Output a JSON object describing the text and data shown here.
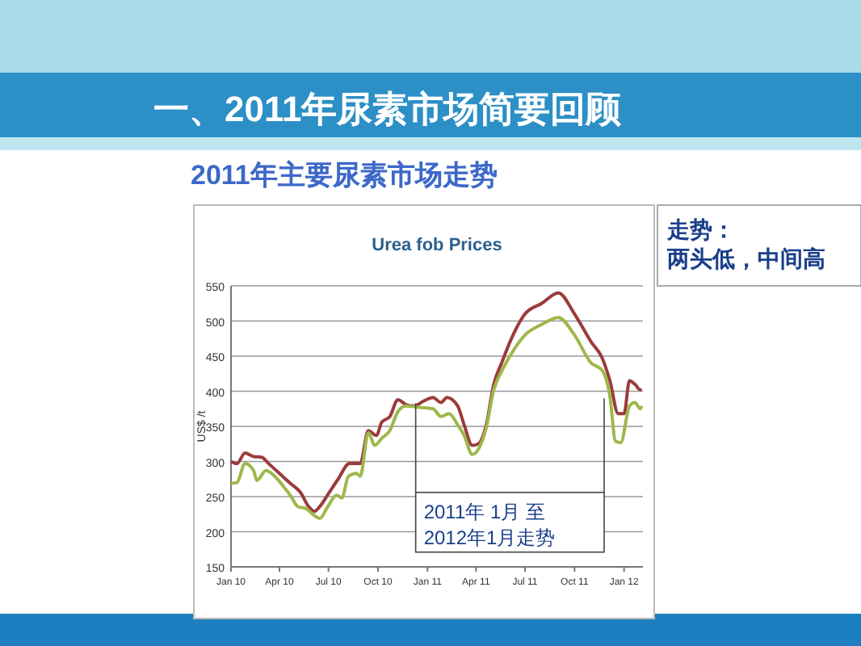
{
  "chart_data": {
    "type": "line",
    "title": "Urea fob Prices",
    "subtitle": "一、2011年尿素市场简要回顾",
    "ylabel": "US$ /t",
    "annotations": [
      "2011年主要尿素市场走势",
      "走势：",
      "两头低，中间高"
    ],
    "bands": [
      {
        "axis": "x",
        "from": "2010-12-10",
        "to": "2011-11-25",
        "label": "2011年 1月 至\n2012年1月走势",
        "color": "#444444"
      }
    ],
    "xlim": [
      "2010-01-01",
      "2012-02-05"
    ],
    "xticks": [
      {
        "value": "2010-01-01",
        "label": "Jan 10"
      },
      {
        "value": "2010-04-01",
        "label": "Apr 10"
      },
      {
        "value": "2010-07-01",
        "label": "Jul 10"
      },
      {
        "value": "2010-10-01",
        "label": "Oct 10"
      },
      {
        "value": "2011-01-01",
        "label": "Jan 11"
      },
      {
        "value": "2011-04-01",
        "label": "Apr 11"
      },
      {
        "value": "2011-07-01",
        "label": "Jul 11"
      },
      {
        "value": "2011-10-01",
        "label": "Oct 11"
      },
      {
        "value": "2012-01-01",
        "label": "Jan 12"
      }
    ],
    "ylim": [
      150,
      550
    ],
    "yticks": [
      150,
      200,
      250,
      300,
      350,
      400,
      450,
      500,
      550
    ],
    "grid": "y",
    "marker": "none",
    "line_style": "solid",
    "series": [
      {
        "color": "#9b3b3b",
        "x": [
          "2010-01-01",
          "2010-01-12",
          "2010-01-27",
          "2010-02-12",
          "2010-02-27",
          "2010-03-12",
          "2010-04-01",
          "2010-04-21",
          "2010-05-10",
          "2010-05-25",
          "2010-06-05",
          "2010-06-15",
          "2010-06-30",
          "2010-07-19",
          "2010-08-09",
          "2010-08-29",
          "2010-09-13",
          "2010-09-28",
          "2010-10-08",
          "2010-10-23",
          "2010-11-07",
          "2010-11-22",
          "2010-12-07",
          "2010-12-27",
          "2011-01-11",
          "2011-01-26",
          "2011-02-06",
          "2011-02-26",
          "2011-03-10",
          "2011-03-25",
          "2011-04-05",
          "2011-04-20",
          "2011-05-04",
          "2011-05-19",
          "2011-06-03",
          "2011-07-01",
          "2011-08-01",
          "2011-09-01",
          "2011-10-01",
          "2011-11-01",
          "2011-11-21",
          "2011-12-06",
          "2011-12-21",
          "2012-01-01",
          "2012-01-11",
          "2012-01-21",
          "2012-01-31",
          "2012-02-03"
        ],
        "values": [
          300,
          297,
          312,
          307,
          306,
          297,
          283,
          269,
          256,
          236,
          229,
          236,
          253,
          275,
          297,
          297,
          344,
          337,
          356,
          364,
          388,
          381,
          379,
          387,
          391,
          384,
          391,
          379,
          352,
          323,
          325,
          352,
          410,
          441,
          470,
          510,
          525,
          540,
          510,
          470,
          448,
          414,
          368,
          368,
          415,
          410,
          402,
          402
        ]
      },
      {
        "color": "#9db84a",
        "x": [
          "2010-01-01",
          "2010-01-12",
          "2010-01-27",
          "2010-02-12",
          "2010-02-18",
          "2010-03-07",
          "2010-03-28",
          "2010-04-13",
          "2010-04-21",
          "2010-05-05",
          "2010-05-20",
          "2010-06-05",
          "2010-06-15",
          "2010-06-30",
          "2010-07-16",
          "2010-07-26",
          "2010-08-07",
          "2010-08-22",
          "2010-08-29",
          "2010-09-13",
          "2010-09-25",
          "2010-10-08",
          "2010-10-23",
          "2010-11-07",
          "2010-11-22",
          "2010-12-17",
          "2011-01-11",
          "2011-01-26",
          "2011-02-10",
          "2011-02-26",
          "2011-03-10",
          "2011-03-25",
          "2011-04-05",
          "2011-04-20",
          "2011-05-04",
          "2011-05-19",
          "2011-06-03",
          "2011-07-01",
          "2011-08-01",
          "2011-09-01",
          "2011-10-01",
          "2011-11-01",
          "2011-11-21",
          "2011-12-06",
          "2011-12-16",
          "2011-12-26",
          "2012-01-11",
          "2012-01-21",
          "2012-01-31",
          "2012-02-03"
        ],
        "values": [
          269,
          270,
          297,
          287,
          273,
          287,
          275,
          260,
          252,
          236,
          233,
          223,
          219,
          236,
          252,
          248,
          279,
          283,
          279,
          341,
          323,
          333,
          344,
          371,
          379,
          377,
          375,
          364,
          368,
          352,
          337,
          310,
          317,
          348,
          402,
          429,
          450,
          480,
          495,
          505,
          480,
          440,
          430,
          391,
          329,
          327,
          379,
          384,
          375,
          379
        ]
      }
    ]
  }
}
